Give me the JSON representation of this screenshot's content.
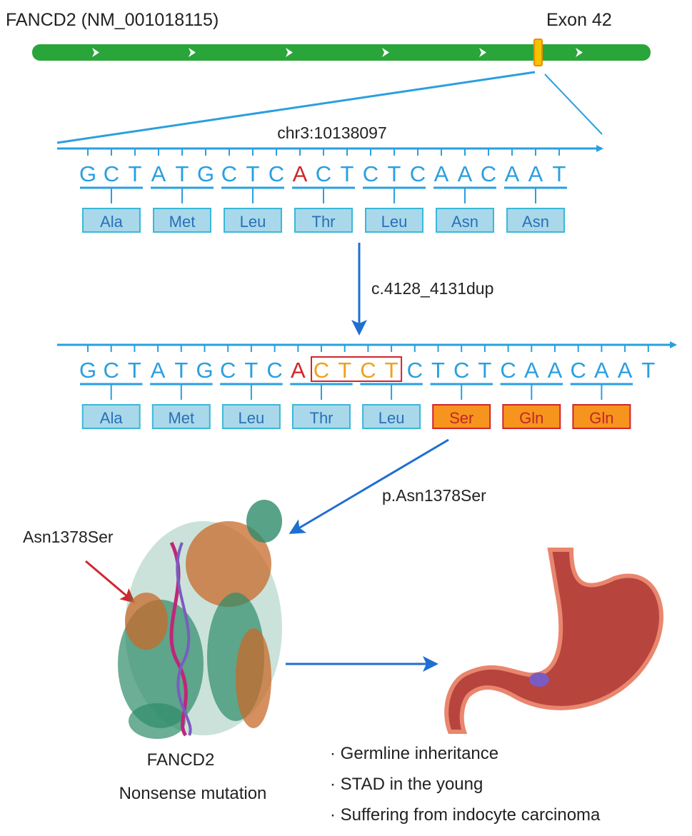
{
  "gene_label": "FANCD2 (NM_001018115)",
  "exon_label": "Exon 42",
  "position_label": "chr3:10138097",
  "mutation_label": "c.4128_4131dup",
  "protein_change_label": "p.Asn1378Ser",
  "site_label": "Asn1378Ser",
  "protein_name": "FANCD2",
  "protein_note": "Nonsense mutation",
  "wildtype": {
    "sequence": "GCTATGCTCACTCTCAACAAT",
    "highlight_index": 9,
    "codons": [
      "Ala",
      "Met",
      "Leu",
      "Thr",
      "Leu",
      "Asn",
      "Asn"
    ]
  },
  "mutant": {
    "sequence": "GCTATGCTCACTCTCTCTCAACAAT",
    "highlight_index": 9,
    "dup_range": [
      10,
      13
    ],
    "codons": [
      "Ala",
      "Met",
      "Leu",
      "Thr",
      "Leu",
      "Ser",
      "Gln",
      "Gln"
    ],
    "mutated_codon_indices": [
      5,
      6,
      7
    ]
  },
  "bullets": [
    "Germline inheritance",
    "STAD in the young",
    "Suffering from indocyte carcinoma"
  ],
  "colors": {
    "gene_bar": "#2aa53a",
    "exon": "#f5c400",
    "sequence": "#2a9fe0",
    "highlight": "#d0262b",
    "dup": "#f0a020",
    "codon_box": "#a8d8ea",
    "mutant_box": "#f7941d",
    "arrow": "#1f6fd1"
  }
}
